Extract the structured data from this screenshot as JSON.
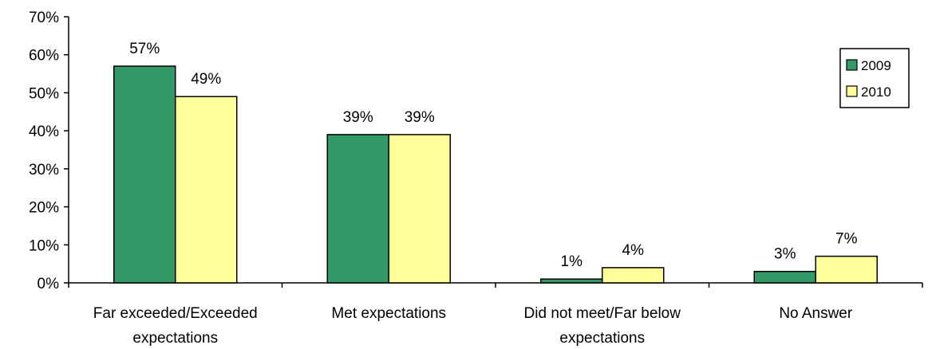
{
  "chart_data": {
    "type": "bar",
    "categories": [
      [
        "Far exceeded/Exceeded",
        "expectations"
      ],
      [
        "Met expectations"
      ],
      [
        "Did not meet/Far below",
        "expectations"
      ],
      [
        "No Answer"
      ]
    ],
    "series": [
      {
        "name": "2009",
        "color": "#339966",
        "values": [
          57,
          39,
          1,
          3
        ],
        "labels": [
          "57%",
          "39%",
          "1%",
          "3%"
        ]
      },
      {
        "name": "2010",
        "color": "#FFFF99",
        "values": [
          49,
          39,
          4,
          7
        ],
        "labels": [
          "49%",
          "39%",
          "4%",
          "7%"
        ]
      }
    ],
    "y_ticks": [
      "0%",
      "10%",
      "20%",
      "30%",
      "40%",
      "50%",
      "60%",
      "70%"
    ],
    "ylim": [
      0,
      70
    ],
    "grid": false,
    "legend_position": "top-right"
  }
}
